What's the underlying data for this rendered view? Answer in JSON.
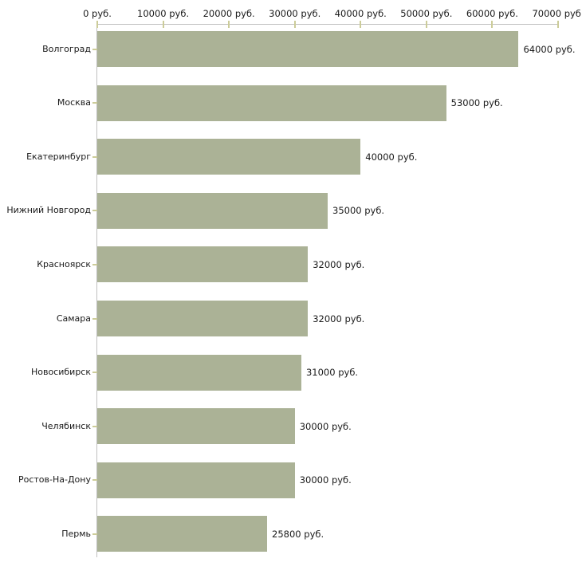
{
  "chart_data": {
    "type": "bar",
    "orientation": "horizontal",
    "title": "",
    "xlabel": "",
    "ylabel": "",
    "categories": [
      "Волгоград",
      "Москва",
      "Екатеринбург",
      "Нижний Новгород",
      "Красноярск",
      "Самара",
      "Новосибирск",
      "Челябинск",
      "Ростов-На-Дону",
      "Пермь"
    ],
    "values": [
      64000,
      53000,
      40000,
      35000,
      32000,
      32000,
      31000,
      30000,
      30000,
      25800
    ],
    "value_labels": [
      "64000 руб.",
      "53000 руб.",
      "40000 руб.",
      "35000 руб.",
      "32000 руб.",
      "32000 руб.",
      "31000 руб.",
      "30000 руб.",
      "30000 руб.",
      "25800 руб."
    ],
    "x_ticks": [
      0,
      10000,
      20000,
      30000,
      40000,
      50000,
      60000,
      70000
    ],
    "x_tick_labels": [
      "0 руб.",
      "10000 руб.",
      "20000 руб.",
      "30000 руб.",
      "40000 руб.",
      "50000 руб.",
      "60000 руб.",
      "70000 руб."
    ],
    "xlim": [
      0,
      70000
    ],
    "unit_suffix": " руб.",
    "legend": false,
    "grid": false,
    "colors": {
      "bar": "#abb296",
      "axis_line": "#c0c0c0",
      "tick_mark": "#cccc99",
      "text": "#1a1a1a",
      "background": "#ffffff"
    }
  }
}
